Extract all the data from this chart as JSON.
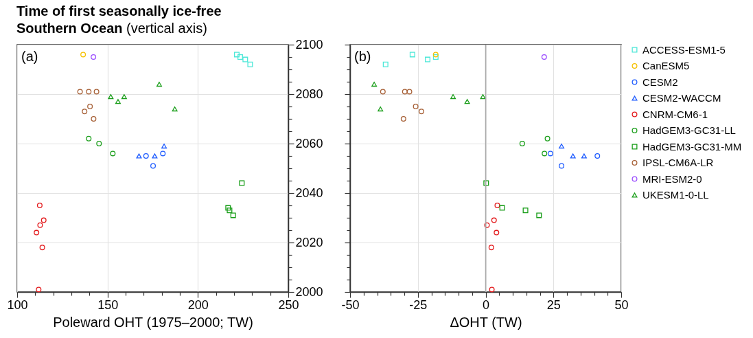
{
  "chart_data": [
    {
      "type": "scatter",
      "title": "Time of first seasonally ice-free Southern Ocean",
      "subtitle": "(vertical axis)",
      "xlabel": "Poleward OHT (1975–2000; TW)",
      "annotations": [
        "(a)"
      ],
      "xlim": [
        100,
        250
      ],
      "ylim": [
        2000,
        2100
      ],
      "xticks": [
        100,
        {
          "value": 110,
          "label": null
        },
        {
          "value": 120,
          "label": null
        },
        {
          "value": 130,
          "label": null
        },
        {
          "value": 140,
          "label": null
        },
        150,
        {
          "value": 160,
          "label": null
        },
        {
          "value": 170,
          "label": null
        },
        {
          "value": 180,
          "label": null
        },
        {
          "value": 190,
          "label": null
        },
        200,
        {
          "value": 210,
          "label": null
        },
        {
          "value": 220,
          "label": null
        },
        {
          "value": 230,
          "label": null
        },
        {
          "value": 240,
          "label": null
        },
        250
      ],
      "yticks": [
        2000,
        {
          "value": 2005,
          "label": null
        },
        {
          "value": 2010,
          "label": null
        },
        {
          "value": 2015,
          "label": null
        },
        2020,
        {
          "value": 2025,
          "label": null
        },
        {
          "value": 2030,
          "label": null
        },
        {
          "value": 2035,
          "label": null
        },
        2040,
        {
          "value": 2045,
          "label": null
        },
        {
          "value": 2050,
          "label": null
        },
        {
          "value": 2055,
          "label": null
        },
        2060,
        {
          "value": 2065,
          "label": null
        },
        {
          "value": 2070,
          "label": null
        },
        {
          "value": 2075,
          "label": null
        },
        2080,
        {
          "value": 2085,
          "label": null
        },
        {
          "value": 2090,
          "label": null
        },
        {
          "value": 2095,
          "label": null
        },
        2100
      ],
      "grid": true,
      "series": [
        {
          "color": "#4de8d8",
          "marker": "square",
          "x": [
            221.5,
            223.4,
            226.2,
            228.9
          ],
          "values": [
            2096,
            2095,
            2094,
            2092
          ]
        },
        {
          "color": "#f5c000",
          "marker": "circle",
          "x": [
            136.5
          ],
          "values": [
            2096
          ]
        },
        {
          "color": "#1f5cff",
          "marker": "circle",
          "x": [
            171.3,
            175.2,
            180.6
          ],
          "values": [
            2055,
            2051,
            2056
          ]
        },
        {
          "color": "#1f5cff",
          "marker": "triangle",
          "x": [
            167.4,
            176.1,
            181.3
          ],
          "values": [
            2055,
            2055,
            2059
          ]
        },
        {
          "color": "#e31a1c",
          "marker": "circle",
          "x": [
            112.5,
            114.7,
            112.7,
            110.7,
            113.9,
            111.9
          ],
          "values": [
            2035,
            2029,
            2027,
            2024,
            2018,
            2001
          ]
        },
        {
          "color": "#1a9e1a",
          "marker": "circle",
          "x": [
            139.6,
            145.3,
            152.9
          ],
          "values": [
            2062,
            2060,
            2056
          ]
        },
        {
          "color": "#1a9e1a",
          "marker": "square",
          "x": [
            224.3,
            216.7,
            217.5,
            219.5
          ],
          "values": [
            2044,
            2034,
            2033,
            2031
          ]
        },
        {
          "color": "#a65f35",
          "marker": "circle",
          "x": [
            134.8,
            139.6,
            143.9,
            140.3,
            137.3,
            142.3
          ],
          "values": [
            2081,
            2081,
            2081,
            2075,
            2073,
            2070
          ]
        },
        {
          "color": "#9b4dff",
          "marker": "circle",
          "x": [
            142.2
          ],
          "values": [
            2095
          ]
        },
        {
          "color": "#1a9e1a",
          "marker": "triangle",
          "x": [
            178.6,
            151.8,
            159.2,
            155.8,
            187.2
          ],
          "values": [
            2084,
            2079,
            2079,
            2077,
            2074
          ]
        }
      ]
    },
    {
      "type": "scatter",
      "xlabel": "ΔOHT (TW)",
      "annotations": [
        "(b)"
      ],
      "xlim": [
        -50,
        50
      ],
      "ylim": [
        2000,
        2100
      ],
      "tick_labels": "x",
      "xticks": [
        -50,
        {
          "value": -45,
          "label": null
        },
        {
          "value": -40,
          "label": null
        },
        {
          "value": -35,
          "label": null
        },
        {
          "value": -30,
          "label": null
        },
        -25,
        {
          "value": -20,
          "label": null
        },
        {
          "value": -15,
          "label": null
        },
        {
          "value": -10,
          "label": null
        },
        {
          "value": -5,
          "label": null
        },
        0,
        {
          "value": 5,
          "label": null
        },
        {
          "value": 10,
          "label": null
        },
        {
          "value": 15,
          "label": null
        },
        {
          "value": 20,
          "label": null
        },
        25,
        {
          "value": 30,
          "label": null
        },
        {
          "value": 35,
          "label": null
        },
        {
          "value": 40,
          "label": null
        },
        {
          "value": 45,
          "label": null
        },
        50
      ],
      "yticks": [
        2000,
        {
          "value": 2005,
          "label": null
        },
        {
          "value": 2010,
          "label": null
        },
        {
          "value": 2015,
          "label": null
        },
        2020,
        {
          "value": 2025,
          "label": null
        },
        {
          "value": 2030,
          "label": null
        },
        {
          "value": 2035,
          "label": null
        },
        2040,
        {
          "value": 2045,
          "label": null
        },
        {
          "value": 2050,
          "label": null
        },
        {
          "value": 2055,
          "label": null
        },
        2060,
        {
          "value": 2065,
          "label": null
        },
        {
          "value": 2070,
          "label": null
        },
        {
          "value": 2075,
          "label": null
        },
        2080,
        {
          "value": 2085,
          "label": null
        },
        {
          "value": 2090,
          "label": null
        },
        {
          "value": 2095,
          "label": null
        },
        2100
      ],
      "grid": true,
      "legend": "right",
      "ref_lines": [
        {
          "axis": "x",
          "value": 0,
          "color": "#aaaaaa"
        }
      ],
      "series": [
        {
          "name": "ACCESS-ESM1-5",
          "color": "#4de8d8",
          "marker": "square",
          "x": [
            -27.0,
            -18.4,
            -21.4,
            -36.9
          ],
          "values": [
            2096,
            2095,
            2094,
            2092
          ]
        },
        {
          "name": "CanESM5",
          "color": "#f5c000",
          "marker": "circle",
          "x": [
            -18.4
          ],
          "values": [
            2096
          ]
        },
        {
          "name": "CESM2",
          "color": "#1f5cff",
          "marker": "circle",
          "x": [
            41.2,
            28.0,
            23.9
          ],
          "values": [
            2055,
            2051,
            2056
          ]
        },
        {
          "name": "CESM2-WACCM",
          "color": "#1f5cff",
          "marker": "triangle",
          "x": [
            32.2,
            36.3,
            28.0
          ],
          "values": [
            2055,
            2055,
            2059
          ]
        },
        {
          "name": "CNRM-CM6-1",
          "color": "#e31a1c",
          "marker": "circle",
          "x": [
            4.3,
            3.1,
            0.5,
            4.0,
            2.1,
            2.3
          ],
          "values": [
            2035,
            2029,
            2027,
            2024,
            2018,
            2001
          ]
        },
        {
          "name": "HadGEM3-GC31-LL",
          "color": "#1a9e1a",
          "marker": "circle",
          "x": [
            22.8,
            13.5,
            21.7
          ],
          "values": [
            2062,
            2060,
            2056
          ]
        },
        {
          "name": "HadGEM3-GC31-MM",
          "color": "#1a9e1a",
          "marker": "square",
          "x": [
            0.2,
            6.1,
            14.7,
            19.7
          ],
          "values": [
            2044,
            2034,
            2033,
            2031
          ]
        },
        {
          "name": "IPSL-CM6A-LR",
          "color": "#a65f35",
          "marker": "circle",
          "x": [
            -37.9,
            -29.8,
            -28.1,
            -25.8,
            -23.7,
            -30.3
          ],
          "values": [
            2081,
            2081,
            2081,
            2075,
            2073,
            2070
          ]
        },
        {
          "name": "MRI-ESM2-0",
          "color": "#9b4dff",
          "marker": "circle",
          "x": [
            21.6
          ],
          "values": [
            2095
          ]
        },
        {
          "name": "UKESM1-0-LL",
          "color": "#1a9e1a",
          "marker": "triangle",
          "x": [
            -41.1,
            -12.0,
            -6.8,
            -38.8,
            -1.0
          ],
          "values": [
            2084,
            2079,
            2077,
            2074,
            2079
          ]
        }
      ]
    }
  ]
}
